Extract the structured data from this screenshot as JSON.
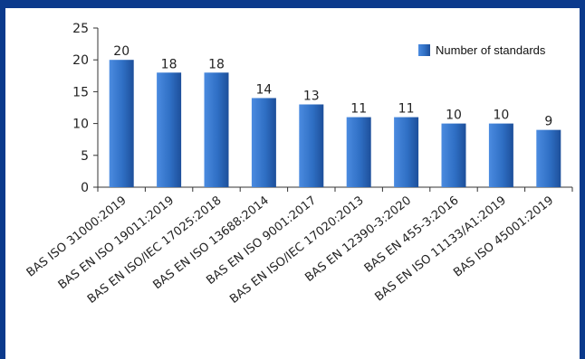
{
  "chart_data": {
    "type": "bar",
    "categories": [
      "BAS ISO 31000:2019",
      "BAS EN ISO 19011:2019",
      "BAS EN ISO/IEC 17025:2018",
      "BAS EN ISO 13688:2014",
      "BAS EN ISO 9001:2017",
      "BAS EN ISO/IEC 17020:2013",
      "BAS EN 12390-3:2020",
      "BAS EN 455-3:2016",
      "BAS EN ISO 11133/A1:2019",
      "BAS ISO 45001:2019"
    ],
    "series": [
      {
        "name": "Number of standards",
        "values": [
          20,
          18,
          18,
          14,
          13,
          11,
          11,
          10,
          10,
          9
        ]
      }
    ],
    "yticks": [
      0,
      5,
      10,
      15,
      20,
      25
    ],
    "ylim": [
      0,
      25
    ],
    "grid": false,
    "legend_position": "top-right",
    "bar_color": "#2f6fc4",
    "bar_color_dark": "#1d4f9a",
    "frame_color": "#0b3a8c"
  }
}
